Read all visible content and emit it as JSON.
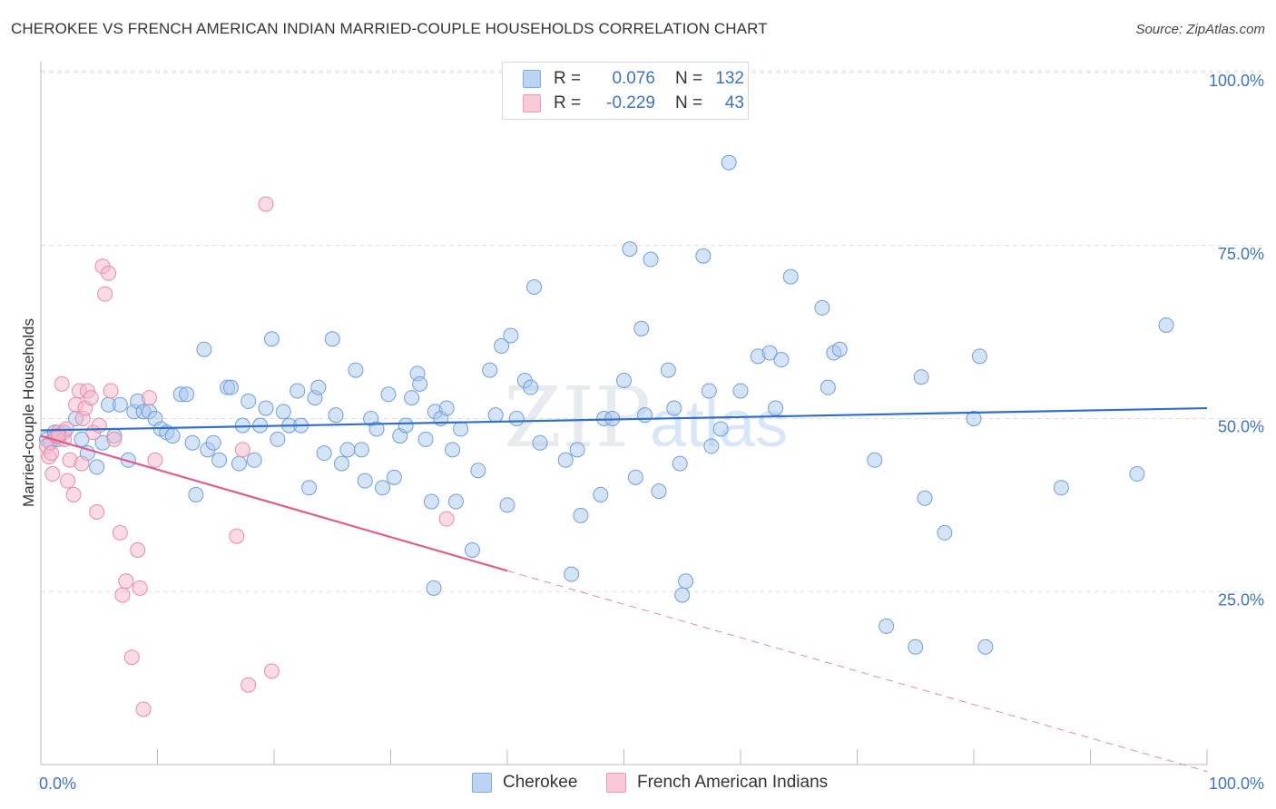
{
  "title": "CHEROKEE VS FRENCH AMERICAN INDIAN MARRIED-COUPLE HOUSEHOLDS CORRELATION CHART",
  "source": "Source: ZipAtlas.com",
  "watermark": {
    "zip": "ZIP",
    "atlas": "atlas"
  },
  "legend": {
    "rows": [
      {
        "r_label": "R =",
        "r_value": "0.076",
        "n_label": "N =",
        "n_value": "132",
        "color": "#a9c7ee"
      },
      {
        "r_label": "R =",
        "r_value": "-0.229",
        "n_label": "N =",
        "n_value": "43",
        "color": "#f6b7cb"
      }
    ]
  },
  "bottom_legend": [
    {
      "label": "Cherokee",
      "color": "#a9c7ee"
    },
    {
      "label": "French American Indians",
      "color": "#f6b7cb"
    }
  ],
  "chart_data": {
    "type": "scatter",
    "title": "CHEROKEE VS FRENCH AMERICAN INDIAN MARRIED-COUPLE HOUSEHOLDS CORRELATION CHART",
    "xlabel": "",
    "ylabel": "Married-couple Households",
    "xlim": [
      0,
      100
    ],
    "ylim": [
      0,
      100
    ],
    "x_tick_labels": [
      {
        "value": 0,
        "label": "0.0%"
      },
      {
        "value": 100,
        "label": "100.0%"
      }
    ],
    "y_tick_labels": [
      {
        "value": 25,
        "label": "25.0%"
      },
      {
        "value": 50,
        "label": "50.0%"
      },
      {
        "value": 75,
        "label": "75.0%"
      },
      {
        "value": 100,
        "label": "100.0%"
      }
    ],
    "grid": true,
    "series": [
      {
        "name": "Cherokee",
        "color": "#a9c7ee",
        "stroke": "#6f9fdc",
        "trend": {
          "x0": 0,
          "y0": 48.3,
          "x1": 100,
          "y1": 51.5,
          "color": "#3070c8"
        },
        "points": [
          [
            0.5,
            47
          ],
          [
            0.8,
            46.5
          ],
          [
            1.2,
            48
          ],
          [
            1.5,
            47
          ],
          [
            2.0,
            48
          ],
          [
            3.0,
            50
          ],
          [
            3.5,
            47
          ],
          [
            4.0,
            45
          ],
          [
            4.8,
            43
          ],
          [
            5.3,
            46.5
          ],
          [
            5.8,
            52
          ],
          [
            6.3,
            47.5
          ],
          [
            6.8,
            52
          ],
          [
            7.5,
            44
          ],
          [
            8.0,
            51
          ],
          [
            8.3,
            52.5
          ],
          [
            8.8,
            51
          ],
          [
            9.3,
            51
          ],
          [
            9.8,
            50
          ],
          [
            10.3,
            48.5
          ],
          [
            10.8,
            48
          ],
          [
            11.3,
            47.5
          ],
          [
            12.0,
            53.5
          ],
          [
            12.5,
            53.5
          ],
          [
            13.0,
            46.5
          ],
          [
            13.3,
            39
          ],
          [
            14.0,
            60
          ],
          [
            14.3,
            45.5
          ],
          [
            14.8,
            46.5
          ],
          [
            15.3,
            44
          ],
          [
            16.0,
            54.5
          ],
          [
            16.3,
            54.5
          ],
          [
            17.0,
            43.5
          ],
          [
            17.3,
            49
          ],
          [
            17.8,
            52.5
          ],
          [
            18.3,
            44
          ],
          [
            18.8,
            49
          ],
          [
            19.3,
            51.5
          ],
          [
            19.8,
            61.5
          ],
          [
            20.3,
            47
          ],
          [
            20.8,
            51
          ],
          [
            21.3,
            49
          ],
          [
            22.0,
            54
          ],
          [
            22.3,
            49
          ],
          [
            23.0,
            40
          ],
          [
            23.5,
            53
          ],
          [
            23.8,
            54.5
          ],
          [
            24.3,
            45
          ],
          [
            25.0,
            61.5
          ],
          [
            25.3,
            50.5
          ],
          [
            25.8,
            43.5
          ],
          [
            26.3,
            45.5
          ],
          [
            27.0,
            57
          ],
          [
            27.5,
            45.5
          ],
          [
            27.8,
            41
          ],
          [
            28.3,
            50
          ],
          [
            28.8,
            48.5
          ],
          [
            29.3,
            40
          ],
          [
            29.8,
            53.5
          ],
          [
            30.3,
            41.5
          ],
          [
            30.8,
            47.5
          ],
          [
            31.3,
            49
          ],
          [
            31.8,
            53
          ],
          [
            32.3,
            56.5
          ],
          [
            32.5,
            55
          ],
          [
            33.0,
            47
          ],
          [
            33.5,
            38
          ],
          [
            33.8,
            51
          ],
          [
            34.3,
            50
          ],
          [
            34.8,
            51.5
          ],
          [
            35.3,
            45.5
          ],
          [
            35.6,
            38
          ],
          [
            36.0,
            48.5
          ],
          [
            37.0,
            31
          ],
          [
            37.5,
            42.5
          ],
          [
            38.5,
            57
          ],
          [
            39.0,
            50.5
          ],
          [
            39.5,
            60.5
          ],
          [
            40.0,
            37.5
          ],
          [
            40.3,
            62
          ],
          [
            40.8,
            50
          ],
          [
            41.5,
            55.5
          ],
          [
            42.0,
            54.5
          ],
          [
            42.3,
            69
          ],
          [
            42.8,
            46.5
          ],
          [
            45.0,
            44
          ],
          [
            45.5,
            27.5
          ],
          [
            46.0,
            45.5
          ],
          [
            46.3,
            36
          ],
          [
            48.0,
            39
          ],
          [
            48.3,
            50
          ],
          [
            49.0,
            50
          ],
          [
            50.0,
            55.5
          ],
          [
            50.5,
            74.5
          ],
          [
            51.0,
            41.5
          ],
          [
            51.5,
            63
          ],
          [
            51.8,
            50.5
          ],
          [
            52.3,
            73
          ],
          [
            53.0,
            39.5
          ],
          [
            53.8,
            57
          ],
          [
            54.3,
            51.5
          ],
          [
            54.8,
            43.5
          ],
          [
            55.0,
            24.5
          ],
          [
            55.3,
            26.5
          ],
          [
            56.8,
            73.5
          ],
          [
            57.3,
            54
          ],
          [
            57.5,
            46
          ],
          [
            58.3,
            48.5
          ],
          [
            59.0,
            87
          ],
          [
            60.0,
            54
          ],
          [
            61.5,
            59
          ],
          [
            62.5,
            59.5
          ],
          [
            63.0,
            51.5
          ],
          [
            63.5,
            58.5
          ],
          [
            64.3,
            70.5
          ],
          [
            67.0,
            66
          ],
          [
            67.5,
            54.5
          ],
          [
            68.0,
            59.5
          ],
          [
            68.5,
            60
          ],
          [
            71.5,
            44
          ],
          [
            72.5,
            20
          ],
          [
            75.0,
            17
          ],
          [
            75.5,
            56
          ],
          [
            75.8,
            38.5
          ],
          [
            77.5,
            33.5
          ],
          [
            80.0,
            50
          ],
          [
            80.5,
            59
          ],
          [
            87.5,
            40
          ],
          [
            94.0,
            42
          ],
          [
            96.5,
            63.5
          ],
          [
            81.0,
            17
          ],
          [
            33.7,
            25.5
          ]
        ]
      },
      {
        "name": "French American Indians",
        "color": "#f6b7cb",
        "stroke": "#e98aa8",
        "trend": {
          "x0": 0,
          "y0": 47.5,
          "x1": 40,
          "y1": 28,
          "color": "#e05c8a"
        },
        "trend_ext": {
          "x0": 40,
          "y0": 28,
          "x1": 100,
          "y1": -1,
          "color": "#e68aa8"
        },
        "points": [
          [
            0.5,
            46
          ],
          [
            0.7,
            44.5
          ],
          [
            0.9,
            45
          ],
          [
            1.0,
            42
          ],
          [
            1.3,
            47.5
          ],
          [
            1.5,
            48
          ],
          [
            1.8,
            55
          ],
          [
            2.0,
            47
          ],
          [
            2.3,
            41
          ],
          [
            2.5,
            44
          ],
          [
            2.8,
            39
          ],
          [
            3.0,
            52
          ],
          [
            3.3,
            54
          ],
          [
            3.6,
            50
          ],
          [
            3.8,
            51.5
          ],
          [
            4.0,
            54
          ],
          [
            4.3,
            53
          ],
          [
            4.5,
            48
          ],
          [
            4.8,
            36.5
          ],
          [
            5.0,
            49
          ],
          [
            5.3,
            72
          ],
          [
            5.5,
            68
          ],
          [
            5.8,
            71
          ],
          [
            6.0,
            54
          ],
          [
            6.3,
            47
          ],
          [
            6.8,
            33.5
          ],
          [
            7.0,
            24.5
          ],
          [
            7.3,
            26.5
          ],
          [
            7.8,
            15.5
          ],
          [
            8.3,
            31
          ],
          [
            8.5,
            25.5
          ],
          [
            8.8,
            8
          ],
          [
            9.3,
            53
          ],
          [
            9.8,
            44
          ],
          [
            16.8,
            33
          ],
          [
            17.3,
            45.5
          ],
          [
            17.8,
            11.5
          ],
          [
            19.3,
            81
          ],
          [
            19.8,
            13.5
          ],
          [
            34.8,
            35.5
          ],
          [
            2.2,
            48.5
          ],
          [
            1.5,
            47.5
          ],
          [
            3.5,
            43.5
          ]
        ]
      }
    ]
  }
}
